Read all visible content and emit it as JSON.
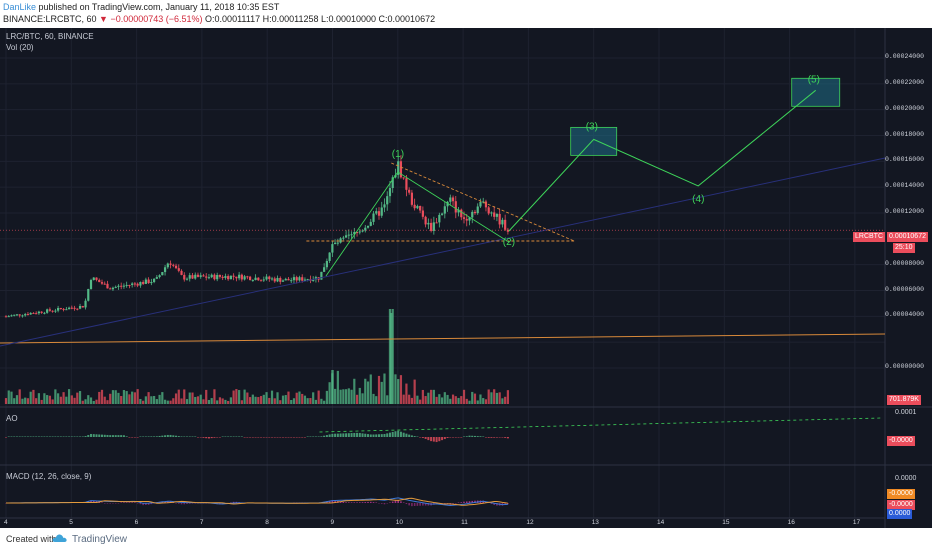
{
  "header": {
    "author": "DanLike",
    "published": "published on TradingView.com, January 11, 2018 10:35 EST",
    "symbol_line": "BINANCE:LRCBTC, 60",
    "change": "▼ −0.00000743 (−6.51%)",
    "ohlc": "O:0.00011117 H:0.00011258 L:0.00010000 C:0.00010672"
  },
  "panes": {
    "main_label": "LRC/BTC, 60, BINANCE",
    "vol_label": "Vol (20)",
    "ao_label": "AO",
    "macd_label": "MACD (12, 26, close, 9)"
  },
  "price_tags": {
    "symbol": "LRCBTC",
    "last": "0.00010672",
    "countdown": "25:10",
    "volume": "701.879K",
    "ao_top": "0.0001",
    "ao_value": "-0.0000",
    "macd_top": "0.0000",
    "macd_val1": "-0.0000",
    "macd_val2": "-0.0000",
    "macd_val3": "0.0000"
  },
  "footer": {
    "created": "Created with",
    "brand": "TradingView"
  },
  "colors": {
    "background": "#131722",
    "up": "#53b987",
    "down": "#eb4d5c",
    "wave": "#3ed45a",
    "box": "#1f6e86",
    "trend_orange": "#d8893a",
    "ma_orange": "#e39a3b"
  },
  "chart_data": [
    {
      "type": "line",
      "title": "LRC/BTC, 60, BINANCE",
      "annotations": [
        "(1)",
        "(2)",
        "(3)",
        "(4)",
        "(5)"
      ],
      "wave_points": [
        {
          "label": "(1)",
          "x": 10.0,
          "y": 0.000157
        },
        {
          "label": "(2)",
          "x": 11.7,
          "y": 0.000106
        },
        {
          "label": "(3)",
          "x": 13.0,
          "y": 0.000177
        },
        {
          "label": "(4)",
          "x": 14.6,
          "y": 0.000141
        },
        {
          "label": "(5)",
          "x": 16.4,
          "y": 0.000215
        }
      ],
      "x_ticks": [
        "4",
        "5",
        "6",
        "7",
        "8",
        "9",
        "10",
        "11",
        "12",
        "13",
        "14",
        "15",
        "16",
        "17"
      ],
      "y_ticks": [
        "0.00024000",
        "0.00022000",
        "0.00020000",
        "0.00018000",
        "0.00016000",
        "0.00014000",
        "0.00012000",
        "0.00010672",
        "0.00008000",
        "0.00006000",
        "0.00004000",
        "0.00000000"
      ],
      "ylim": [
        0.0,
        0.00025
      ],
      "grid": true
    },
    {
      "type": "bar",
      "title": "Vol (20)",
      "last_value": "701.879K"
    },
    {
      "type": "bar",
      "title": "AO",
      "y_ticks": [
        "0.0001",
        "-0.0000"
      ]
    },
    {
      "type": "line",
      "title": "MACD (12, 26, close, 9)",
      "y_ticks": [
        "0.0000",
        "-0.0000"
      ]
    }
  ]
}
